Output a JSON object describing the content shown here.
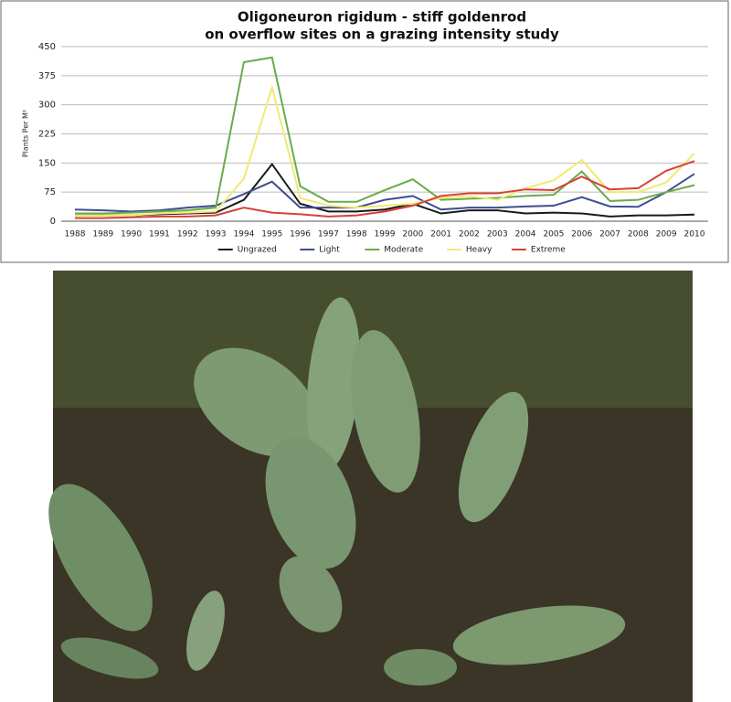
{
  "chart_data": {
    "type": "line",
    "title": "Oligoneuron rigidum  -  stiff goldenrod",
    "subtitle": "on overflow sites on a grazing intensity study",
    "y_label": "Plants Per M²",
    "categories": [
      "1988",
      "1989",
      "1990",
      "1991",
      "1992",
      "1993",
      "1994",
      "1995",
      "1996",
      "1997",
      "1998",
      "1999",
      "2000",
      "2001",
      "2002",
      "2003",
      "2004",
      "2005",
      "2006",
      "2007",
      "2008",
      "2009",
      "2010"
    ],
    "ylim": [
      0,
      450
    ],
    "yticks": [
      0,
      75,
      150,
      225,
      300,
      375,
      450
    ],
    "grid": true,
    "series": [
      {
        "name": "Ungrazed",
        "color": "#1a1a1a",
        "values": [
          15,
          15,
          15,
          18,
          20,
          22,
          55,
          147,
          45,
          25,
          25,
          30,
          45,
          20,
          28,
          28,
          20,
          22,
          20,
          12,
          15,
          15,
          17
        ]
      },
      {
        "name": "Light",
        "color": "#3f4d8f",
        "values": [
          30,
          28,
          25,
          28,
          35,
          40,
          70,
          102,
          35,
          35,
          35,
          55,
          65,
          30,
          35,
          35,
          38,
          40,
          62,
          38,
          37,
          75,
          122
        ]
      },
      {
        "name": "Moderate",
        "color": "#6aab4a",
        "values": [
          20,
          20,
          22,
          25,
          28,
          35,
          410,
          422,
          90,
          50,
          50,
          80,
          108,
          55,
          58,
          60,
          65,
          68,
          128,
          52,
          55,
          75,
          93
        ]
      },
      {
        "name": "Heavy",
        "color": "#f0ea72",
        "values": [
          15,
          15,
          15,
          20,
          22,
          25,
          110,
          345,
          60,
          40,
          35,
          40,
          45,
          60,
          65,
          55,
          85,
          105,
          158,
          75,
          75,
          100,
          175
        ]
      },
      {
        "name": "Extreme",
        "color": "#d8403a",
        "values": [
          8,
          8,
          10,
          12,
          12,
          15,
          35,
          22,
          18,
          12,
          15,
          25,
          40,
          65,
          72,
          72,
          82,
          80,
          115,
          82,
          85,
          130,
          155
        ]
      }
    ]
  }
}
